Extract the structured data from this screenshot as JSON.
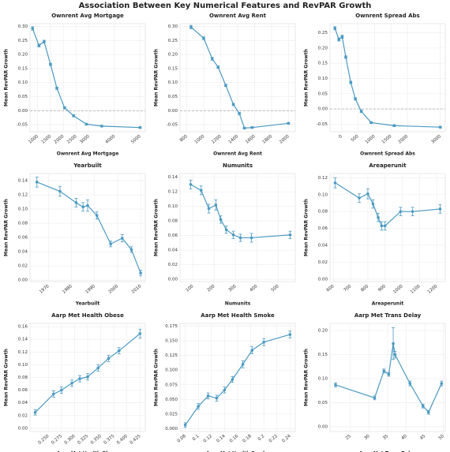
{
  "title": "Association Between Key Numerical Features and RevPAR Growth",
  "chart_data": [
    {
      "type": "line",
      "title": "Ownrent Avg Mortgage",
      "x_label": "Ownrent Avg Mortgage",
      "y_label": "Mean RevPAR Growth",
      "color": "#4c9ac2",
      "grid": true,
      "refline": 0,
      "x": [
        800,
        1050,
        1250,
        1500,
        1750,
        2050,
        2400,
        2900,
        3500,
        5000
      ],
      "values": [
        0.293,
        0.232,
        0.246,
        0.165,
        0.08,
        0.01,
        -0.018,
        -0.048,
        -0.055,
        -0.06
      ],
      "errors": [
        0.006,
        0.005,
        0.005,
        0.004,
        0.004,
        0.004,
        0.004,
        0.003,
        0.003,
        0.003
      ],
      "xlim": [
        700,
        5200
      ],
      "xticks": [
        1000,
        1500,
        2000,
        2500,
        3000,
        4000,
        5000
      ],
      "ylim": [
        -0.075,
        0.31
      ],
      "yticks": [
        {
          "value": -0.05,
          "label": "-0.05"
        },
        {
          "value": 0,
          "label": "0.00"
        },
        {
          "value": 0.05,
          "label": "0.05"
        },
        {
          "value": 0.1,
          "label": "0.10"
        },
        {
          "value": 0.15,
          "label": "0.15"
        },
        {
          "value": 0.2,
          "label": "0.20"
        },
        {
          "value": 0.25,
          "label": "0.25"
        },
        {
          "value": 0.3,
          "label": "0.30"
        }
      ]
    },
    {
      "type": "line",
      "title": "Ownrent Avg Rent",
      "x_label": "Ownrent Avg Rent",
      "y_label": "Mean RevPAR Growth",
      "color": "#4c9ac2",
      "grid": true,
      "refline": 0,
      "x": [
        850,
        1000,
        1100,
        1170,
        1260,
        1350,
        1420,
        1480,
        1570,
        2000
      ],
      "values": [
        0.298,
        0.258,
        0.185,
        0.155,
        0.09,
        0.022,
        -0.01,
        -0.062,
        -0.06,
        -0.045
      ],
      "errors": [
        0.006,
        0.005,
        0.005,
        0.004,
        0.004,
        0.004,
        0.004,
        0.003,
        0.003,
        0.003
      ],
      "xlim": [
        720,
        2080
      ],
      "xticks": [
        800,
        1000,
        1200,
        1400,
        1600,
        1800,
        2000
      ],
      "ylim": [
        -0.075,
        0.31
      ],
      "yticks": [
        {
          "value": -0.05,
          "label": "-0.05"
        },
        {
          "value": 0,
          "label": "0.00"
        },
        {
          "value": 0.05,
          "label": "0.05"
        },
        {
          "value": 0.1,
          "label": "0.10"
        },
        {
          "value": 0.15,
          "label": "0.15"
        },
        {
          "value": 0.2,
          "label": "0.20"
        },
        {
          "value": 0.25,
          "label": "0.25"
        },
        {
          "value": 0.3,
          "label": "0.30"
        }
      ]
    },
    {
      "type": "line",
      "title": "Ownrent Spread Abs",
      "x_label": "Ownrent Spread Abs",
      "y_label": "Mean RevPAR Growth",
      "color": "#4c9ac2",
      "grid": true,
      "refline": 0,
      "x": [
        -200,
        -80,
        20,
        130,
        280,
        420,
        600,
        900,
        1600,
        3000
      ],
      "values": [
        0.265,
        0.228,
        0.237,
        0.17,
        0.087,
        0.033,
        -0.008,
        -0.045,
        -0.055,
        -0.06
      ],
      "errors": [
        0.005,
        0.005,
        0.005,
        0.004,
        0.004,
        0.004,
        0.004,
        0.003,
        0.003,
        0.003
      ],
      "xlim": [
        -350,
        3150
      ],
      "xticks": [
        0,
        500,
        1000,
        1500,
        2000,
        3000
      ],
      "ylim": [
        -0.075,
        0.28
      ],
      "yticks": [
        {
          "value": -0.05,
          "label": "-0.05"
        },
        {
          "value": 0,
          "label": "0.00"
        },
        {
          "value": 0.05,
          "label": "0.05"
        },
        {
          "value": 0.1,
          "label": "0.10"
        },
        {
          "value": 0.15,
          "label": "0.15"
        },
        {
          "value": 0.2,
          "label": "0.20"
        },
        {
          "value": 0.25,
          "label": "0.25"
        }
      ]
    },
    {
      "type": "line",
      "title": "Yearbuilt",
      "x_label": "Yearbuilt",
      "y_label": "Mean RevPAR Growth",
      "color": "#4c9ac2",
      "grid": true,
      "x": [
        1965,
        1975,
        1982,
        1985,
        1987,
        1991,
        1997,
        2002,
        2006,
        2010
      ],
      "values": [
        0.138,
        0.125,
        0.109,
        0.103,
        0.105,
        0.091,
        0.051,
        0.059,
        0.043,
        0.01
      ],
      "errors": [
        0.007,
        0.007,
        0.006,
        0.006,
        0.008,
        0.005,
        0.004,
        0.005,
        0.004,
        0.004
      ],
      "xlim": [
        1962,
        2012
      ],
      "xticks": [
        1970,
        1980,
        1990,
        2000,
        2010
      ],
      "ylim": [
        -0.002,
        0.15
      ],
      "yticks": [
        {
          "value": 0,
          "label": "0.00"
        },
        {
          "value": 0.02,
          "label": "0.02"
        },
        {
          "value": 0.04,
          "label": "0.04"
        },
        {
          "value": 0.06,
          "label": "0.06"
        },
        {
          "value": 0.08,
          "label": "0.08"
        },
        {
          "value": 0.1,
          "label": "0.10"
        },
        {
          "value": 0.12,
          "label": "0.12"
        },
        {
          "value": 0.14,
          "label": "0.14"
        }
      ]
    },
    {
      "type": "line",
      "title": "Numunits",
      "x_label": "Numunits",
      "y_label": "Mean RevPAR Growth",
      "color": "#4c9ac2",
      "grid": true,
      "x": [
        90,
        139,
        175,
        208,
        231,
        257,
        290,
        323,
        375,
        556
      ],
      "values": [
        0.13,
        0.122,
        0.097,
        0.102,
        0.082,
        0.068,
        0.061,
        0.057,
        0.057,
        0.061
      ],
      "errors": [
        0.006,
        0.006,
        0.006,
        0.007,
        0.005,
        0.005,
        0.005,
        0.005,
        0.006,
        0.005
      ],
      "xlim": [
        40,
        580
      ],
      "xticks": [
        100,
        200,
        300,
        400,
        500
      ],
      "ylim": [
        -0.003,
        0.145
      ],
      "yticks": [
        {
          "value": 0,
          "label": "0.00"
        },
        {
          "value": 0.02,
          "label": "0.02"
        },
        {
          "value": 0.04,
          "label": "0.04"
        },
        {
          "value": 0.06,
          "label": "0.06"
        },
        {
          "value": 0.08,
          "label": "0.08"
        },
        {
          "value": 0.1,
          "label": "0.10"
        },
        {
          "value": 0.12,
          "label": "0.12"
        },
        {
          "value": 0.14,
          "label": "0.14"
        }
      ]
    },
    {
      "type": "line",
      "title": "Areaperunit",
      "x_label": "Areaperunit",
      "y_label": "Mean RevPAR Growth",
      "color": "#4c9ac2",
      "grid": true,
      "x": [
        610,
        750,
        800,
        830,
        860,
        880,
        900,
        990,
        1060,
        1220
      ],
      "values": [
        0.114,
        0.096,
        0.101,
        0.089,
        0.073,
        0.063,
        0.063,
        0.08,
        0.08,
        0.083
      ],
      "errors": [
        0.006,
        0.005,
        0.006,
        0.005,
        0.005,
        0.005,
        0.005,
        0.005,
        0.005,
        0.005
      ],
      "xlim": [
        580,
        1250
      ],
      "xticks": [
        600,
        700,
        800,
        900,
        1000,
        1100,
        1200
      ],
      "ylim": [
        -0.003,
        0.125
      ],
      "yticks": [
        {
          "value": 0,
          "label": "0.00"
        },
        {
          "value": 0.02,
          "label": "0.02"
        },
        {
          "value": 0.04,
          "label": "0.04"
        },
        {
          "value": 0.06,
          "label": "0.06"
        },
        {
          "value": 0.08,
          "label": "0.08"
        },
        {
          "value": 0.1,
          "label": "0.10"
        },
        {
          "value": 0.12,
          "label": "0.12"
        }
      ]
    },
    {
      "type": "line",
      "title": "Aarp Met Health Obese",
      "x_label": "Aarp Met Health Obese",
      "y_label": "Mean RevPAR Growth",
      "color": "#4c9ac2",
      "grid": true,
      "x": [
        0.225,
        0.26,
        0.275,
        0.295,
        0.31,
        0.325,
        0.345,
        0.365,
        0.385,
        0.425
      ],
      "values": [
        0.025,
        0.054,
        0.06,
        0.071,
        0.078,
        0.081,
        0.095,
        0.11,
        0.122,
        0.149
      ],
      "errors": [
        0.004,
        0.005,
        0.005,
        0.005,
        0.005,
        0.005,
        0.005,
        0.005,
        0.005,
        0.007
      ],
      "xlim": [
        0.215,
        0.435
      ],
      "xticks": [
        {
          "value": 0.25,
          "label": "0.250"
        },
        {
          "value": 0.275,
          "label": "0.275"
        },
        {
          "value": 0.3,
          "label": "0.300"
        },
        {
          "value": 0.325,
          "label": "0.325"
        },
        {
          "value": 0.35,
          "label": "0.350"
        },
        {
          "value": 0.375,
          "label": "0.375"
        },
        {
          "value": 0.4,
          "label": "0.400"
        },
        {
          "value": 0.425,
          "label": "0.425"
        }
      ],
      "ylim": [
        -0.005,
        0.165
      ],
      "yticks": [
        {
          "value": 0,
          "label": "0.00"
        },
        {
          "value": 0.02,
          "label": "0.02"
        },
        {
          "value": 0.04,
          "label": "0.04"
        },
        {
          "value": 0.06,
          "label": "0.06"
        },
        {
          "value": 0.08,
          "label": "0.08"
        },
        {
          "value": 0.1,
          "label": "0.10"
        },
        {
          "value": 0.12,
          "label": "0.12"
        },
        {
          "value": 0.14,
          "label": "0.14"
        },
        {
          "value": 0.16,
          "label": "0.16"
        }
      ]
    },
    {
      "type": "line",
      "title": "Aarp Met Health Smoke",
      "x_label": "Aarp Met Health Smoke",
      "y_label": "Mean RevPAR Growth",
      "color": "#4c9ac2",
      "grid": true,
      "x": [
        0.08,
        0.1,
        0.115,
        0.128,
        0.14,
        0.152,
        0.168,
        0.182,
        0.2,
        0.24
      ],
      "values": [
        0.006,
        0.038,
        0.056,
        0.052,
        0.066,
        0.084,
        0.11,
        0.134,
        0.148,
        0.161
      ],
      "errors": [
        0.004,
        0.005,
        0.005,
        0.005,
        0.005,
        0.005,
        0.006,
        0.006,
        0.006,
        0.006
      ],
      "xlim": [
        0.072,
        0.248
      ],
      "xticks": [
        0.08,
        0.1,
        0.12,
        0.14,
        0.16,
        0.18,
        0.2,
        0.22,
        0.24
      ],
      "ylim": [
        -0.005,
        0.18
      ],
      "yticks": [
        {
          "value": 0,
          "label": "0.000"
        },
        {
          "value": 0.025,
          "label": "0.025"
        },
        {
          "value": 0.05,
          "label": "0.050"
        },
        {
          "value": 0.075,
          "label": "0.075"
        },
        {
          "value": 0.1,
          "label": "0.100"
        },
        {
          "value": 0.125,
          "label": "0.125"
        },
        {
          "value": 0.15,
          "label": "0.150"
        },
        {
          "value": 0.175,
          "label": "0.175"
        }
      ]
    },
    {
      "type": "line",
      "title": "Aarp Met Trans Delay",
      "x_label": "Aarp Met Trans Delay",
      "y_label": "Mean RevPAR Growth",
      "color": "#4c9ac2",
      "grid": true,
      "x": [
        21,
        31.5,
        34,
        35.3,
        36.5,
        37,
        41,
        44.5,
        46,
        49.5
      ],
      "values": [
        0.087,
        0.06,
        0.116,
        0.109,
        0.173,
        0.15,
        0.09,
        0.043,
        0.03,
        0.09
      ],
      "errors": [
        0.004,
        0.004,
        0.004,
        0.004,
        0.033,
        0.007,
        0.005,
        0.004,
        0.004,
        0.005
      ],
      "xlim": [
        19.5,
        50.5
      ],
      "xticks": [
        25,
        30,
        35,
        40,
        45,
        50
      ],
      "ylim": [
        -0.01,
        0.215
      ],
      "yticks": [
        {
          "value": 0,
          "label": "0.00"
        },
        {
          "value": 0.05,
          "label": "0.05"
        },
        {
          "value": 0.1,
          "label": "0.10"
        },
        {
          "value": 0.15,
          "label": "0.15"
        },
        {
          "value": 0.2,
          "label": "0.20"
        }
      ]
    }
  ]
}
